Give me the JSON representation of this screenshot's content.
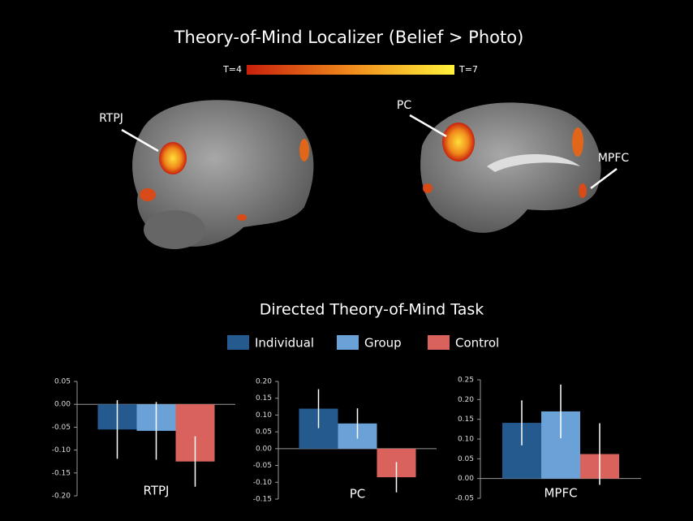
{
  "title": "Theory-of-Mind Localizer (Belief > Photo)",
  "colorbar": {
    "low_label": "T=4",
    "high_label": "T=7"
  },
  "brain_labels": [
    "RTPJ",
    "PC",
    "MPFC"
  ],
  "subtitle": "Directed Theory-of-Mind Task",
  "legend": [
    {
      "name": "Individual",
      "color": "#245a8e"
    },
    {
      "name": "Group",
      "color": "#6aa2d8"
    },
    {
      "name": "Control",
      "color": "#d9635c"
    }
  ],
  "chart_data": [
    {
      "type": "bar",
      "xlabel": "RTPJ",
      "values": [
        -0.055,
        -0.058,
        -0.125
      ],
      "errors": [
        0.064,
        0.063,
        0.055
      ],
      "ylim": [
        -0.2,
        0.05
      ],
      "yticks": [
        {
          "value": -0.2,
          "label": "-0.20"
        },
        -0.15,
        {
          "value": -0.1,
          "label": "-0.10"
        },
        -0.05,
        {
          "value": 0,
          "label": "0.00"
        },
        0.05
      ]
    },
    {
      "type": "bar",
      "xlabel": "PC",
      "values": [
        0.119,
        0.075,
        -0.085
      ],
      "errors": [
        0.058,
        0.045,
        0.045
      ],
      "ylim": [
        -0.15,
        0.2
      ],
      "yticks": [
        -0.15,
        {
          "value": -0.1,
          "label": "-0.10"
        },
        -0.05,
        {
          "value": 0,
          "label": "0.00"
        },
        0.05,
        {
          "value": 0.1,
          "label": "0.10"
        },
        0.15,
        {
          "value": 0.2,
          "label": "0.20"
        }
      ]
    },
    {
      "type": "bar",
      "xlabel": "MPFC",
      "values": [
        0.141,
        0.17,
        0.062
      ],
      "errors": [
        0.057,
        0.068,
        0.078
      ],
      "ylim": [
        -0.05,
        0.25
      ],
      "yticks": [
        -0.05,
        {
          "value": 0,
          "label": "0.00"
        },
        0.05,
        {
          "value": 0.1,
          "label": "0.10"
        },
        0.15,
        {
          "value": 0.2,
          "label": "0.20"
        },
        0.25
      ]
    }
  ]
}
